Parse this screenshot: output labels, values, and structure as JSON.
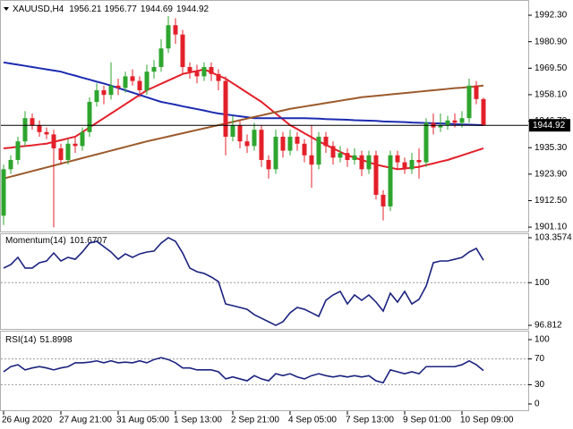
{
  "chart_data": [
    {
      "type": "candlestick",
      "title": "XAUUSD,H4",
      "categories": [
        "26 Aug 2020",
        null,
        null,
        null,
        null,
        null,
        null,
        null,
        "27 Aug 21:00",
        null,
        null,
        null,
        null,
        null,
        null,
        null,
        "31 Aug 05:00",
        null,
        null,
        null,
        null,
        null,
        null,
        null,
        "1 Sep 13:00",
        null,
        null,
        null,
        null,
        null,
        null,
        null,
        "2 Sep 21:00",
        null,
        null,
        null,
        null,
        null,
        null,
        null,
        "4 Sep 05:00",
        null,
        null,
        null,
        null,
        null,
        null,
        null,
        "7 Sep 13:00",
        null,
        null,
        null,
        null,
        null,
        null,
        null,
        "9 Sep 01:00",
        null,
        null,
        null,
        null,
        null,
        null,
        null,
        "10 Sep 09:00",
        null,
        null,
        null
      ],
      "open": [
        1906,
        1926,
        1930,
        1938,
        1948,
        1945,
        1942,
        1941,
        1935,
        1930,
        1937,
        1936,
        1942,
        1955,
        1960,
        1958,
        1962,
        1961,
        1966,
        1964,
        1960,
        1968,
        1970,
        1978,
        1988,
        1984,
        1970,
        1968,
        1966,
        1970,
        1967,
        1964,
        1940,
        1945,
        1938,
        1936,
        1943,
        1930,
        1926,
        1940,
        1934,
        1940,
        1937,
        1932,
        1928,
        1940,
        1936,
        1931,
        1933,
        1930,
        1932,
        1926,
        1932,
        1915,
        1910,
        1932,
        1929,
        1926,
        1930,
        1929,
        1946,
        1944,
        1945,
        1947,
        1946,
        1948,
        1962,
        1956.21
      ],
      "high": [
        1928,
        1932,
        1940,
        1951,
        1950,
        1947,
        1944,
        1943,
        1937,
        1939,
        1940,
        1944,
        1957,
        1963,
        1962,
        1972,
        1965,
        1968,
        1969,
        1966,
        1971,
        1973,
        1982,
        1992,
        1991,
        1986,
        1972,
        1971,
        1972,
        1972,
        1969,
        1966,
        1949,
        1947,
        1941,
        1946,
        1945,
        1932,
        1943,
        1942,
        1943,
        1942,
        1939,
        1945,
        1942,
        1942,
        1938,
        1936,
        1935,
        1935,
        1934,
        1934,
        1934,
        1917,
        1934,
        1934,
        1931,
        1933,
        1935,
        1948,
        1950,
        1950,
        1949,
        1950,
        1951,
        1965,
        1964,
        1956.77
      ],
      "low": [
        1902,
        1924,
        1928,
        1936,
        1943,
        1940,
        1939,
        1901,
        1928,
        1928,
        1933,
        1934,
        1940,
        1953,
        1954,
        1956,
        1958,
        1959,
        1962,
        1957,
        1958,
        1965,
        1968,
        1976,
        1980,
        1967,
        1965,
        1963,
        1964,
        1964,
        1960,
        1932,
        1938,
        1935,
        1933,
        1934,
        1927,
        1922,
        1924,
        1931,
        1932,
        1934,
        1929,
        1918,
        1926,
        1933,
        1928,
        1929,
        1927,
        1928,
        1923,
        1924,
        1913,
        1904,
        1908,
        1926,
        1924,
        1924,
        1922,
        1927,
        1941,
        1942,
        1943,
        1944,
        1944,
        1946,
        1954,
        1944.69
      ],
      "close": [
        1926,
        1930,
        1938,
        1948,
        1945,
        1942,
        1941,
        1935,
        1930,
        1937,
        1936,
        1942,
        1955,
        1960,
        1958,
        1962,
        1961,
        1966,
        1964,
        1960,
        1968,
        1970,
        1978,
        1988,
        1984,
        1970,
        1968,
        1966,
        1970,
        1967,
        1964,
        1940,
        1945,
        1938,
        1936,
        1943,
        1930,
        1926,
        1940,
        1934,
        1940,
        1937,
        1932,
        1928,
        1940,
        1936,
        1931,
        1933,
        1930,
        1932,
        1926,
        1932,
        1915,
        1910,
        1932,
        1929,
        1926,
        1930,
        1929,
        1946,
        1944,
        1945,
        1947,
        1946,
        1948,
        1962,
        1956.21,
        1944.92
      ],
      "up_color": "#2ea52e",
      "down_color": "#e3202a",
      "series": [
        {
          "color": "#e3202a",
          "values": [
            1935,
            1935.3,
            1935.7,
            1936,
            1936.3,
            1936.7,
            1937,
            1937.8,
            1938.5,
            1939.3,
            1940,
            1942,
            1944,
            1946,
            1948,
            1950,
            1952,
            1954,
            1956,
            1958,
            1960,
            1961.4,
            1962.8,
            1964.2,
            1965.6,
            1967,
            1967.7,
            1968.3,
            1969,
            1967.7,
            1966.3,
            1965,
            1963,
            1961,
            1959,
            1957,
            1955,
            1952.5,
            1950,
            1947.5,
            1945,
            1943.3,
            1941.5,
            1939.8,
            1938,
            1936.5,
            1935,
            1933.5,
            1932,
            1931,
            1930,
            1929,
            1928,
            1927.3,
            1926.7,
            1926,
            1926.3,
            1926.7,
            1927,
            1927.8,
            1928.5,
            1929.3,
            1930,
            1931,
            1932,
            1933,
            1934,
            1935
          ]
        },
        {
          "color": "#1c2bb0",
          "values": [
            1972,
            1971.5,
            1971,
            1970.5,
            1970,
            1969.5,
            1969,
            1968.5,
            1968,
            1967.1,
            1966.3,
            1965.4,
            1964.6,
            1963.7,
            1962.9,
            1962,
            1961,
            1960,
            1959,
            1958,
            1957,
            1956,
            1955,
            1954.4,
            1953.8,
            1953.1,
            1952.5,
            1951.9,
            1951.3,
            1950.6,
            1950,
            1949.6,
            1949.2,
            1948.8,
            1948.4,
            1948,
            1948,
            1948,
            1948,
            1948,
            1948,
            1948,
            1948,
            1947.9,
            1947.8,
            1947.6,
            1947.5,
            1947.4,
            1947.3,
            1947.1,
            1947,
            1946.9,
            1946.8,
            1946.6,
            1946.5,
            1946.4,
            1946.3,
            1946.1,
            1946,
            1945.9,
            1945.8,
            1945.7,
            1945.6,
            1945.4,
            1945.3,
            1945.2,
            1945.1,
            1945
          ]
        },
        {
          "color": "#9c5a2c",
          "values": [
            1922,
            1922.8,
            1923.6,
            1924.4,
            1925.2,
            1926,
            1926.8,
            1927.6,
            1928.4,
            1929.2,
            1930,
            1930.8,
            1931.6,
            1932.4,
            1933.2,
            1934,
            1934.8,
            1935.6,
            1936.4,
            1937.2,
            1938,
            1938.7,
            1939.4,
            1940.1,
            1940.8,
            1941.5,
            1942.2,
            1942.9,
            1943.6,
            1944.3,
            1945,
            1945.7,
            1946.4,
            1947.1,
            1947.8,
            1948.5,
            1949.2,
            1949.9,
            1950.6,
            1951.3,
            1952,
            1952.5,
            1953,
            1953.5,
            1954,
            1954.5,
            1955,
            1955.5,
            1956,
            1956.5,
            1957,
            1957.3,
            1957.6,
            1957.9,
            1958.2,
            1958.5,
            1958.8,
            1959.1,
            1959.4,
            1959.7,
            1960,
            1960.3,
            1960.6,
            1960.9,
            1961.1,
            1961.4,
            1961.7,
            1962
          ]
        }
      ],
      "ylim": [
        1899.6,
        1997.7
      ],
      "yticks": [
        {
          "value": 1992.3,
          "label": "1992.30"
        },
        {
          "value": 1980.9,
          "label": "1980.90"
        },
        {
          "value": 1969.5,
          "label": "1969.50"
        },
        {
          "value": 1958.1,
          "label": "1958.10"
        },
        {
          "value": 1946.7,
          "label": "1946.70"
        },
        {
          "value": 1935.3,
          "label": "1935.30"
        },
        {
          "value": 1923.9,
          "label": "1923.90"
        },
        {
          "value": 1912.5,
          "label": "1912.50"
        },
        {
          "value": 1901.1,
          "label": "1901.10"
        }
      ],
      "last_price_line": true
    },
    {
      "type": "line",
      "title": "Momentum(14)",
      "color": "#1a237e",
      "values": [
        101.09,
        101.35,
        101.89,
        101.09,
        101.09,
        101.49,
        101.62,
        102.22,
        101.62,
        101.89,
        101.75,
        102.29,
        102.96,
        103.09,
        102.69,
        102.29,
        101.75,
        102.15,
        101.89,
        102.15,
        102.29,
        102.36,
        102.96,
        103.36,
        103.09,
        102.22,
        101.09,
        100.82,
        100.69,
        100.42,
        100.08,
        98.41,
        98.28,
        98.15,
        98.01,
        97.61,
        97.34,
        97.08,
        96.81,
        97.08,
        97.75,
        98.15,
        98.01,
        97.75,
        97.48,
        98.68,
        99.08,
        99.35,
        98.41,
        99.08,
        98.68,
        99.08,
        98.55,
        97.88,
        99.21,
        98.55,
        99.35,
        98.41,
        98.75,
        99.75,
        101.49,
        101.62,
        101.62,
        101.75,
        101.89,
        102.29,
        102.56,
        101.6707
      ],
      "ylim": [
        96.812,
        103.3574
      ],
      "yticks": [
        103.3574,
        100,
        96.812
      ],
      "levels": [
        100
      ]
    },
    {
      "type": "line",
      "title": "RSI(14)",
      "color": "#1a237e",
      "values": [
        50,
        58,
        61,
        53,
        56,
        58,
        56,
        53,
        56,
        58,
        64,
        64,
        65,
        67,
        64,
        67,
        64,
        65,
        64,
        67,
        64,
        69,
        72,
        69,
        64,
        56,
        56,
        53,
        53,
        53,
        50,
        39,
        42,
        39,
        36,
        44,
        39,
        36,
        47,
        44,
        47,
        42,
        39,
        44,
        47,
        44,
        42,
        44,
        42,
        44,
        42,
        44,
        36,
        33,
        53,
        50,
        47,
        50,
        47,
        58,
        58,
        58,
        58,
        58,
        61,
        67,
        61,
        51.8998
      ],
      "ylim": [
        0,
        100
      ],
      "yticks": [
        100,
        70,
        30,
        0
      ],
      "levels": [
        70,
        30
      ]
    }
  ]
}
